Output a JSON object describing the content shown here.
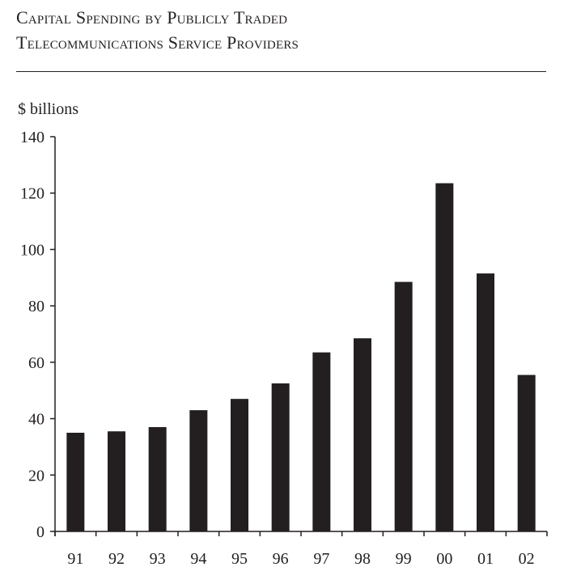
{
  "title_line1": "Capital Spending by Publicly Traded",
  "title_line2": "Telecommunications Service Providers",
  "colors": {
    "bar": "#231f20",
    "axis": "#231f20",
    "background": "#ffffff"
  },
  "chart_data": {
    "type": "bar",
    "title": "Capital Spending by Publicly Traded Telecommunications Service Providers",
    "ylabel": "$ billions",
    "xlabel": "",
    "categories": [
      "91",
      "92",
      "93",
      "94",
      "95",
      "96",
      "97",
      "98",
      "99",
      "00",
      "01",
      "02"
    ],
    "values": [
      35,
      35.5,
      37,
      43,
      47,
      52.5,
      63.5,
      68.5,
      88.5,
      123.5,
      91.5,
      55.5
    ],
    "ylim": [
      0,
      140
    ],
    "yticks": [
      0,
      20,
      40,
      60,
      80,
      100,
      120,
      140
    ],
    "grid": false,
    "legend": "none"
  }
}
